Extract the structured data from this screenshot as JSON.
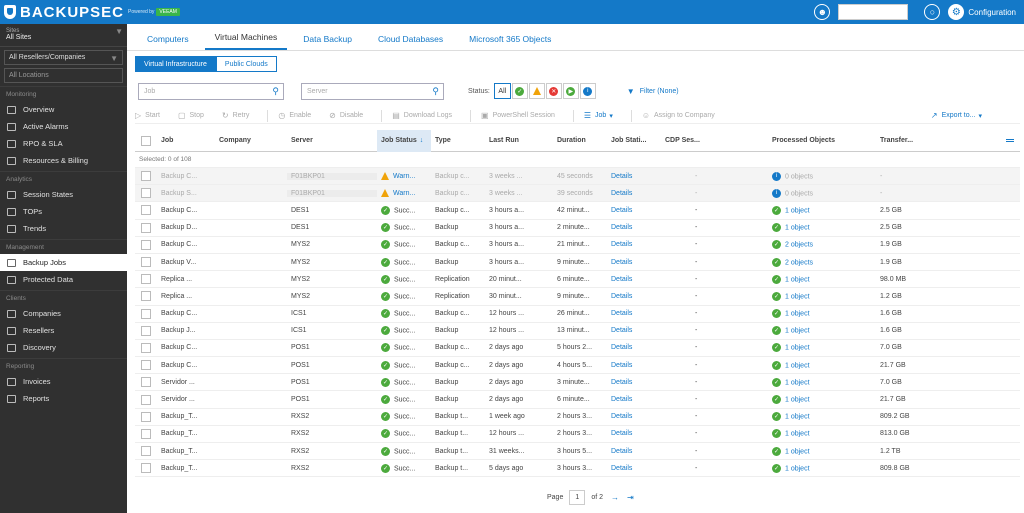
{
  "header": {
    "brand": "BACKUPSEC",
    "powered_by": "Powered by",
    "partner": "VEEAM",
    "config_label": "Configuration"
  },
  "sidebar": {
    "sites_label": "Sites",
    "sites_value": "All Sites",
    "resellers_select": "All Resellers/Companies",
    "locations_select": "All Locations",
    "sections": [
      {
        "title": "Monitoring",
        "items": [
          "Overview",
          "Active Alarms",
          "RPO & SLA",
          "Resources & Billing"
        ]
      },
      {
        "title": "Analytics",
        "items": [
          "Session States",
          "TOPs",
          "Trends"
        ]
      },
      {
        "title": "Management",
        "items": [
          "Backup Jobs",
          "Protected Data"
        ]
      },
      {
        "title": "Clients",
        "items": [
          "Companies",
          "Resellers",
          "Discovery"
        ]
      },
      {
        "title": "Reporting",
        "items": [
          "Invoices",
          "Reports"
        ]
      }
    ]
  },
  "tabs": [
    "Computers",
    "Virtual Machines",
    "Data Backup",
    "Cloud Databases",
    "Microsoft 365 Objects"
  ],
  "subtabs": [
    "Virtual Infrastructure",
    "Public Clouds"
  ],
  "filters": {
    "job_placeholder": "Job",
    "server_placeholder": "Server",
    "status_label": "Status:",
    "all_label": "All",
    "filter_label": "Filter (None)"
  },
  "toolbar": {
    "start": "Start",
    "stop": "Stop",
    "retry": "Retry",
    "enable": "Enable",
    "disable": "Disable",
    "download_logs": "Download Logs",
    "powershell": "PowerShell Session",
    "job": "Job",
    "assign": "Assign to Company",
    "export": "Export to..."
  },
  "columns": [
    "Job",
    "Company",
    "Server",
    "Job Status",
    "Type",
    "Last Run",
    "Duration",
    "Job Stati...",
    "CDP Ses...",
    "Processed Objects",
    "Transfer..."
  ],
  "selected_text": "Selected: 0 of 108",
  "rows": [
    {
      "job": "Backup C...",
      "server": "F01BKP01",
      "status": "Warn...",
      "type": "Backup c...",
      "last": "3 weeks ...",
      "duration": "45 seconds",
      "details": "Details",
      "cdp": "-",
      "objects": "0 objects",
      "transfer": "-",
      "state": "warn"
    },
    {
      "job": "Backup S...",
      "server": "F01BKP01",
      "status": "Warn...",
      "type": "Backup c...",
      "last": "3 weeks ...",
      "duration": "39 seconds",
      "details": "Details",
      "cdp": "-",
      "objects": "0 objects",
      "transfer": "-",
      "state": "warn"
    },
    {
      "job": "Backup C...",
      "server": "DES1",
      "status": "Succ...",
      "type": "Backup c...",
      "last": "3 hours a...",
      "duration": "42 minut...",
      "details": "Details",
      "cdp": "-",
      "objects": "1 object",
      "transfer": "2.5 GB",
      "state": "ok"
    },
    {
      "job": "Backup D...",
      "server": "DES1",
      "status": "Succ...",
      "type": "Backup",
      "last": "3 hours a...",
      "duration": "2 minute...",
      "details": "Details",
      "cdp": "-",
      "objects": "1 object",
      "transfer": "2.5 GB",
      "state": "ok"
    },
    {
      "job": "Backup C...",
      "server": "MYS2",
      "status": "Succ...",
      "type": "Backup c...",
      "last": "3 hours a...",
      "duration": "21 minut...",
      "details": "Details",
      "cdp": "-",
      "objects": "2 objects",
      "transfer": "1.9 GB",
      "state": "ok"
    },
    {
      "job": "Backup V...",
      "server": "MYS2",
      "status": "Succ...",
      "type": "Backup",
      "last": "3 hours a...",
      "duration": "9 minute...",
      "details": "Details",
      "cdp": "-",
      "objects": "2 objects",
      "transfer": "1.9 GB",
      "state": "ok"
    },
    {
      "job": "Replica ...",
      "server": "MYS2",
      "status": "Succ...",
      "type": "Replication",
      "last": "20 minut...",
      "duration": "6 minute...",
      "details": "Details",
      "cdp": "-",
      "objects": "1 object",
      "transfer": "98.0 MB",
      "state": "ok"
    },
    {
      "job": "Replica ...",
      "server": "MYS2",
      "status": "Succ...",
      "type": "Replication",
      "last": "30 minut...",
      "duration": "9 minute...",
      "details": "Details",
      "cdp": "-",
      "objects": "1 object",
      "transfer": "1.2 GB",
      "state": "ok"
    },
    {
      "job": "Backup C...",
      "server": "ICS1",
      "status": "Succ...",
      "type": "Backup c...",
      "last": "12 hours ...",
      "duration": "26 minut...",
      "details": "Details",
      "cdp": "-",
      "objects": "1 object",
      "transfer": "1.6 GB",
      "state": "ok"
    },
    {
      "job": "Backup J...",
      "server": "ICS1",
      "status": "Succ...",
      "type": "Backup",
      "last": "12 hours ...",
      "duration": "13 minut...",
      "details": "Details",
      "cdp": "-",
      "objects": "1 object",
      "transfer": "1.6 GB",
      "state": "ok"
    },
    {
      "job": "Backup C...",
      "server": "POS1",
      "status": "Succ...",
      "type": "Backup c...",
      "last": "2 days ago",
      "duration": "5 hours 2...",
      "details": "Details",
      "cdp": "-",
      "objects": "1 object",
      "transfer": "7.0 GB",
      "state": "ok"
    },
    {
      "job": "Backup C...",
      "server": "POS1",
      "status": "Succ...",
      "type": "Backup c...",
      "last": "2 days ago",
      "duration": "4 hours 5...",
      "details": "Details",
      "cdp": "-",
      "objects": "1 object",
      "transfer": "21.7 GB",
      "state": "ok"
    },
    {
      "job": "Servidor ...",
      "server": "POS1",
      "status": "Succ...",
      "type": "Backup",
      "last": "2 days ago",
      "duration": "3 minute...",
      "details": "Details",
      "cdp": "-",
      "objects": "1 object",
      "transfer": "7.0 GB",
      "state": "ok"
    },
    {
      "job": "Servidor ...",
      "server": "POS1",
      "status": "Succ...",
      "type": "Backup",
      "last": "2 days ago",
      "duration": "6 minute...",
      "details": "Details",
      "cdp": "-",
      "objects": "1 object",
      "transfer": "21.7 GB",
      "state": "ok"
    },
    {
      "job": "Backup_T...",
      "server": "RXS2",
      "status": "Succ...",
      "type": "Backup t...",
      "last": "1 week ago",
      "duration": "2 hours 3...",
      "details": "Details",
      "cdp": "-",
      "objects": "1 object",
      "transfer": "809.2 GB",
      "state": "ok"
    },
    {
      "job": "Backup_T...",
      "server": "RXS2",
      "status": "Succ...",
      "type": "Backup t...",
      "last": "12 hours ...",
      "duration": "2 hours 3...",
      "details": "Details",
      "cdp": "-",
      "objects": "1 object",
      "transfer": "813.0 GB",
      "state": "ok"
    },
    {
      "job": "Backup_T...",
      "server": "RXS2",
      "status": "Succ...",
      "type": "Backup t...",
      "last": "31 weeks...",
      "duration": "3 hours 5...",
      "details": "Details",
      "cdp": "-",
      "objects": "1 object",
      "transfer": "1.2 TB",
      "state": "ok"
    },
    {
      "job": "Backup_T...",
      "server": "RXS2",
      "status": "Succ...",
      "type": "Backup t...",
      "last": "5 days ago",
      "duration": "3 hours 3...",
      "details": "Details",
      "cdp": "-",
      "objects": "1 object",
      "transfer": "809.8 GB",
      "state": "ok"
    }
  ],
  "pager": {
    "page_label": "Page",
    "page": "1",
    "of_label": "of 2"
  }
}
